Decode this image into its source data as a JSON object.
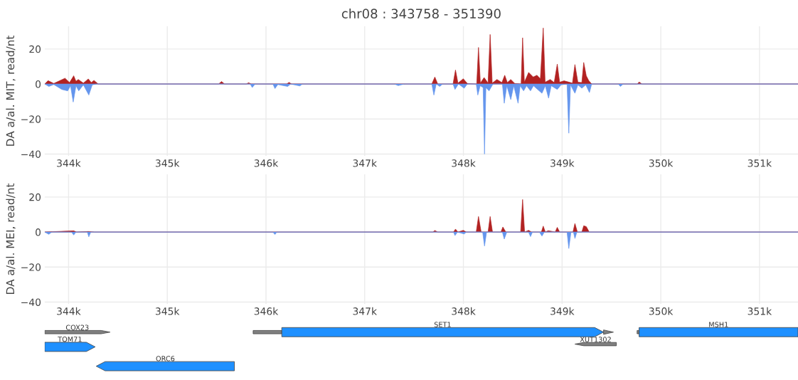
{
  "chart_data": [
    {
      "type": "area",
      "title": "chr08 : 343758 - 351390",
      "ylabel": "DA a/al. MIT, read/nt",
      "xlim": [
        343758,
        351390
      ],
      "xticks": [
        {
          "value": 344000,
          "label": "344k"
        },
        {
          "value": 345000,
          "label": "345k"
        },
        {
          "value": 346000,
          "label": "346k"
        },
        {
          "value": 347000,
          "label": "347k"
        },
        {
          "value": 348000,
          "label": "348k"
        },
        {
          "value": 349000,
          "label": "349k"
        },
        {
          "value": 350000,
          "label": "350k"
        },
        {
          "value": 351000,
          "label": "351k"
        }
      ],
      "ylim": [
        -41,
        33
      ],
      "yticks": [
        -40,
        -20,
        0,
        20
      ],
      "grid": true,
      "series": [
        {
          "color": "#b22222",
          "x": [
            343758,
            343792,
            343850,
            343964,
            344010,
            344052,
            344075,
            344098,
            344150,
            344200,
            344230,
            344257,
            344300,
            345520,
            345550,
            345580,
            345800,
            345824,
            345850,
            346210,
            346233,
            346260,
            347680,
            347711,
            347740,
            347895,
            347920,
            347945,
            347999,
            348040,
            348135,
            348153,
            348172,
            348210,
            348250,
            348271,
            348292,
            348340,
            348390,
            348419,
            348445,
            348480,
            348520,
            348585,
            348600,
            348618,
            348661,
            348707,
            348746,
            348780,
            348809,
            348828,
            348880,
            348920,
            348951,
            348975,
            349020,
            349105,
            349130,
            349160,
            349200,
            349219,
            349245,
            349270,
            349300,
            349760,
            349781,
            349810,
            351390
          ],
          "values": [
            0,
            1.9,
            0.3,
            3.3,
            0.8,
            4.7,
            1.5,
            2.6,
            0.5,
            2.9,
            0.8,
            2.1,
            0,
            0,
            1.4,
            0,
            0,
            0.7,
            0,
            0,
            0.9,
            0,
            0,
            4,
            0,
            0,
            8,
            0.5,
            3,
            0.3,
            0,
            20.9,
            0.5,
            3.7,
            0.5,
            28.3,
            0.5,
            2.6,
            0.8,
            5,
            0.8,
            2.6,
            0.3,
            0,
            26.4,
            1,
            6.6,
            4,
            5,
            3,
            32,
            1,
            2.6,
            0.8,
            11.4,
            1,
            1.8,
            0.5,
            11.1,
            1,
            0.8,
            12.3,
            4.7,
            1.9,
            0,
            0,
            1.1,
            0,
            0
          ]
        },
        {
          "color": "#6495ed",
          "x": [
            343758,
            343800,
            343850,
            343932,
            343991,
            344020,
            344047,
            344075,
            344103,
            344150,
            344205,
            344240,
            344280,
            345840,
            345861,
            345890,
            346070,
            346091,
            346120,
            346220,
            346250,
            346343,
            346370,
            347300,
            347340,
            347400,
            347680,
            347701,
            347725,
            347760,
            347790,
            347895,
            347915,
            347950,
            348008,
            348040,
            348130,
            348146,
            348170,
            348200,
            348214,
            348228,
            348260,
            348300,
            348395,
            348414,
            348440,
            348480,
            348510,
            348554,
            348575,
            348610,
            348640,
            348680,
            348710,
            348750,
            348796,
            348830,
            348863,
            348890,
            348951,
            348990,
            349050,
            349068,
            349085,
            349130,
            349160,
            349200,
            349240,
            349277,
            349300,
            349570,
            349590,
            349620,
            351390
          ],
          "values": [
            0,
            -1.4,
            -0.3,
            -3.1,
            -3.9,
            -1,
            -10.3,
            -1,
            -3.9,
            -0.5,
            -6.3,
            -0.5,
            0,
            0,
            -2,
            0,
            0,
            -2.6,
            -0.3,
            -1.4,
            0,
            -1.1,
            0,
            0,
            -0.9,
            0,
            0,
            -6.3,
            0,
            -1.4,
            0,
            0,
            -3.1,
            0,
            -2.4,
            0,
            0,
            -6.3,
            -1,
            -2,
            -40,
            -2,
            -3.9,
            0,
            0,
            -11,
            -1,
            -8.9,
            -1,
            -11,
            -1,
            -3.9,
            -1,
            -3.9,
            -1,
            -3,
            -5.3,
            -1,
            -8.1,
            -1,
            -3.1,
            -0.5,
            0,
            -28.1,
            -0.5,
            -5.3,
            -0.5,
            -2.4,
            -0.5,
            -4.9,
            0,
            0,
            -1.4,
            0,
            0
          ]
        }
      ]
    },
    {
      "type": "area",
      "ylabel": "DA a/al. MEI, read/nt",
      "xlim": [
        343758,
        351390
      ],
      "xticks": [
        {
          "value": 344000,
          "label": "344k"
        },
        {
          "value": 345000,
          "label": "345k"
        },
        {
          "value": 346000,
          "label": "346k"
        },
        {
          "value": 347000,
          "label": "347k"
        },
        {
          "value": 348000,
          "label": "348k"
        },
        {
          "value": 349000,
          "label": "349k"
        },
        {
          "value": 350000,
          "label": "350k"
        },
        {
          "value": 351000,
          "label": "351k"
        }
      ],
      "ylim": [
        -41,
        33
      ],
      "yticks": [
        -40,
        -20,
        0,
        20
      ],
      "grid": true,
      "series": [
        {
          "color": "#b22222",
          "x": [
            343758,
            344052,
            344080,
            344200,
            344260,
            347690,
            347711,
            347740,
            347900,
            347920,
            347945,
            347999,
            348030,
            348130,
            348153,
            348180,
            348250,
            348271,
            348295,
            348380,
            348400,
            348430,
            348580,
            348600,
            348620,
            348661,
            348690,
            348790,
            348809,
            348830,
            348860,
            348930,
            348951,
            348975,
            349110,
            349130,
            349155,
            349200,
            349219,
            349245,
            349275,
            351390
          ],
          "values": [
            0,
            0.7,
            0,
            0.3,
            0,
            0,
            0.9,
            0,
            0,
            1.7,
            0,
            1,
            0,
            0,
            8.9,
            0,
            0,
            8.9,
            0,
            0,
            2.9,
            0,
            0,
            18.6,
            0,
            1,
            0,
            0,
            3.4,
            0,
            0.8,
            0,
            2.7,
            0,
            0,
            4.9,
            0,
            0,
            3.6,
            3.1,
            0,
            0
          ]
        },
        {
          "color": "#6495ed",
          "x": [
            343758,
            343800,
            343830,
            344030,
            344052,
            344075,
            344190,
            344205,
            344225,
            346070,
            346091,
            346110,
            347900,
            347915,
            347940,
            348008,
            348030,
            348195,
            348214,
            348235,
            348395,
            348414,
            348440,
            348660,
            348680,
            348700,
            348770,
            348796,
            348820,
            349050,
            349068,
            349090,
            349115,
            349130,
            349150,
            351390
          ],
          "values": [
            0,
            -1.3,
            0,
            0,
            -1.7,
            0,
            0,
            -2.7,
            0,
            0,
            -1.4,
            0,
            0,
            -2,
            0,
            -1.1,
            0,
            0,
            -8,
            0,
            0,
            -4,
            0,
            0,
            -2.6,
            0,
            0,
            -2.3,
            0,
            0,
            -9.4,
            0,
            0,
            -3.7,
            0,
            0
          ]
        }
      ]
    },
    {
      "type": "other",
      "annotations": [
        "COX23",
        "TOM71",
        "ORC6",
        "SET1",
        "XUT1302",
        "MSH1"
      ]
    }
  ]
}
